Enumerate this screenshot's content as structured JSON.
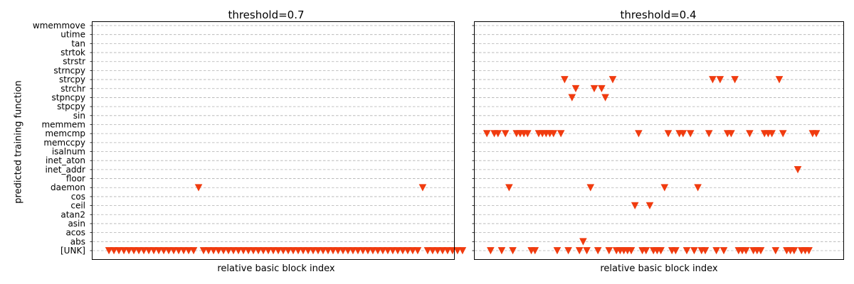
{
  "chart_data": [
    {
      "type": "scatter",
      "title": "threshold=0.7",
      "xlabel": "relative basic block index",
      "ylabel": "predicted training function",
      "marker": "triangle-down",
      "color": "#f03b0f",
      "grid": "y-dashed",
      "xlim": [
        -3.3,
        69.3
      ],
      "categories": [
        "[UNK]",
        "abs",
        "acos",
        "asin",
        "atan2",
        "ceil",
        "cos",
        "daemon",
        "floor",
        "inet_addr",
        "inet_aton",
        "isalnum",
        "memccpy",
        "memcmp",
        "memmem",
        "sin",
        "stpcpy",
        "stpncpy",
        "strchr",
        "strcpy",
        "strncpy",
        "strstr",
        "strtok",
        "tan",
        "utime",
        "wmemmove"
      ],
      "series": [
        {
          "points": [
            [
              0,
              "[UNK]"
            ],
            [
              1,
              "[UNK]"
            ],
            [
              2,
              "[UNK]"
            ],
            [
              3,
              "[UNK]"
            ],
            [
              4,
              "[UNK]"
            ],
            [
              5,
              "[UNK]"
            ],
            [
              6,
              "[UNK]"
            ],
            [
              7,
              "[UNK]"
            ],
            [
              8,
              "[UNK]"
            ],
            [
              9,
              "[UNK]"
            ],
            [
              10,
              "[UNK]"
            ],
            [
              11,
              "[UNK]"
            ],
            [
              12,
              "[UNK]"
            ],
            [
              13,
              "[UNK]"
            ],
            [
              14,
              "[UNK]"
            ],
            [
              15,
              "[UNK]"
            ],
            [
              16,
              "[UNK]"
            ],
            [
              17,
              "[UNK]"
            ],
            [
              18,
              "daemon"
            ],
            [
              19,
              "[UNK]"
            ],
            [
              20,
              "[UNK]"
            ],
            [
              21,
              "[UNK]"
            ],
            [
              22,
              "[UNK]"
            ],
            [
              23,
              "[UNK]"
            ],
            [
              24,
              "[UNK]"
            ],
            [
              25,
              "[UNK]"
            ],
            [
              26,
              "[UNK]"
            ],
            [
              27,
              "[UNK]"
            ],
            [
              28,
              "[UNK]"
            ],
            [
              29,
              "[UNK]"
            ],
            [
              30,
              "[UNK]"
            ],
            [
              31,
              "[UNK]"
            ],
            [
              32,
              "[UNK]"
            ],
            [
              33,
              "[UNK]"
            ],
            [
              34,
              "[UNK]"
            ],
            [
              35,
              "[UNK]"
            ],
            [
              36,
              "[UNK]"
            ],
            [
              37,
              "[UNK]"
            ],
            [
              38,
              "[UNK]"
            ],
            [
              39,
              "[UNK]"
            ],
            [
              40,
              "[UNK]"
            ],
            [
              41,
              "[UNK]"
            ],
            [
              42,
              "[UNK]"
            ],
            [
              43,
              "[UNK]"
            ],
            [
              44,
              "[UNK]"
            ],
            [
              45,
              "[UNK]"
            ],
            [
              46,
              "[UNK]"
            ],
            [
              47,
              "[UNK]"
            ],
            [
              48,
              "[UNK]"
            ],
            [
              49,
              "[UNK]"
            ],
            [
              50,
              "[UNK]"
            ],
            [
              51,
              "[UNK]"
            ],
            [
              52,
              "[UNK]"
            ],
            [
              53,
              "[UNK]"
            ],
            [
              54,
              "[UNK]"
            ],
            [
              55,
              "[UNK]"
            ],
            [
              56,
              "[UNK]"
            ],
            [
              57,
              "[UNK]"
            ],
            [
              58,
              "[UNK]"
            ],
            [
              59,
              "[UNK]"
            ],
            [
              60,
              "[UNK]"
            ],
            [
              61,
              "[UNK]"
            ],
            [
              62,
              "[UNK]"
            ],
            [
              63,
              "daemon"
            ],
            [
              64,
              "[UNK]"
            ],
            [
              65,
              "[UNK]"
            ],
            [
              66,
              "[UNK]"
            ],
            [
              67,
              "[UNK]"
            ],
            [
              68,
              "[UNK]"
            ],
            [
              69,
              "[UNK]"
            ],
            [
              70,
              "[UNK]"
            ],
            [
              71,
              "[UNK]"
            ]
          ]
        }
      ]
    },
    {
      "type": "scatter",
      "title": "threshold=0.4",
      "xlabel": "relative basic block index",
      "ylabel": "",
      "marker": "triangle-down",
      "color": "#f03b0f",
      "grid": "y-dashed",
      "xlim": [
        -3.3,
        96.3
      ],
      "categories": [
        "[UNK]",
        "abs",
        "acos",
        "asin",
        "atan2",
        "ceil",
        "cos",
        "daemon",
        "floor",
        "inet_addr",
        "inet_aton",
        "isalnum",
        "memccpy",
        "memcmp",
        "memmem",
        "sin",
        "stpcpy",
        "stpncpy",
        "strchr",
        "strcpy",
        "strncpy",
        "strstr",
        "strtok",
        "tan",
        "utime",
        "wmemmove"
      ],
      "series": [
        {
          "points": [
            [
              0,
              "memcmp"
            ],
            [
              1,
              "[UNK]"
            ],
            [
              2,
              "memcmp"
            ],
            [
              3,
              "memcmp"
            ],
            [
              4,
              "[UNK]"
            ],
            [
              5,
              "memcmp"
            ],
            [
              6,
              "daemon"
            ],
            [
              7,
              "[UNK]"
            ],
            [
              8,
              "memcmp"
            ],
            [
              9,
              "memcmp"
            ],
            [
              10,
              "memcmp"
            ],
            [
              11,
              "memcmp"
            ],
            [
              12,
              "[UNK]"
            ],
            [
              13,
              "[UNK]"
            ],
            [
              14,
              "memcmp"
            ],
            [
              15,
              "memcmp"
            ],
            [
              16,
              "memcmp"
            ],
            [
              17,
              "memcmp"
            ],
            [
              18,
              "memcmp"
            ],
            [
              19,
              "[UNK]"
            ],
            [
              20,
              "memcmp"
            ],
            [
              21,
              "strcpy"
            ],
            [
              22,
              "[UNK]"
            ],
            [
              23,
              "stpncpy"
            ],
            [
              24,
              "strchr"
            ],
            [
              25,
              "[UNK]"
            ],
            [
              26,
              "abs"
            ],
            [
              27,
              "[UNK]"
            ],
            [
              28,
              "daemon"
            ],
            [
              29,
              "strchr"
            ],
            [
              30,
              "[UNK]"
            ],
            [
              31,
              "strchr"
            ],
            [
              32,
              "stpncpy"
            ],
            [
              33,
              "[UNK]"
            ],
            [
              34,
              "strcpy"
            ],
            [
              35,
              "[UNK]"
            ],
            [
              36,
              "[UNK]"
            ],
            [
              37,
              "[UNK]"
            ],
            [
              38,
              "[UNK]"
            ],
            [
              39,
              "[UNK]"
            ],
            [
              40,
              "ceil"
            ],
            [
              41,
              "memcmp"
            ],
            [
              42,
              "[UNK]"
            ],
            [
              43,
              "[UNK]"
            ],
            [
              44,
              "ceil"
            ],
            [
              45,
              "[UNK]"
            ],
            [
              46,
              "[UNK]"
            ],
            [
              47,
              "[UNK]"
            ],
            [
              48,
              "daemon"
            ],
            [
              49,
              "memcmp"
            ],
            [
              50,
              "[UNK]"
            ],
            [
              51,
              "[UNK]"
            ],
            [
              52,
              "memcmp"
            ],
            [
              53,
              "memcmp"
            ],
            [
              54,
              "[UNK]"
            ],
            [
              55,
              "memcmp"
            ],
            [
              56,
              "[UNK]"
            ],
            [
              57,
              "daemon"
            ],
            [
              58,
              "[UNK]"
            ],
            [
              59,
              "[UNK]"
            ],
            [
              60,
              "memcmp"
            ],
            [
              61,
              "strcpy"
            ],
            [
              62,
              "[UNK]"
            ],
            [
              63,
              "strcpy"
            ],
            [
              64,
              "[UNK]"
            ],
            [
              65,
              "memcmp"
            ],
            [
              66,
              "memcmp"
            ],
            [
              67,
              "strcpy"
            ],
            [
              68,
              "[UNK]"
            ],
            [
              69,
              "[UNK]"
            ],
            [
              70,
              "[UNK]"
            ],
            [
              71,
              "memcmp"
            ],
            [
              72,
              "[UNK]"
            ],
            [
              73,
              "[UNK]"
            ],
            [
              74,
              "[UNK]"
            ],
            [
              75,
              "memcmp"
            ],
            [
              76,
              "memcmp"
            ],
            [
              77,
              "memcmp"
            ],
            [
              78,
              "[UNK]"
            ],
            [
              79,
              "strcpy"
            ],
            [
              80,
              "memcmp"
            ],
            [
              81,
              "[UNK]"
            ],
            [
              82,
              "[UNK]"
            ],
            [
              83,
              "[UNK]"
            ],
            [
              84,
              "inet_addr"
            ],
            [
              85,
              "[UNK]"
            ],
            [
              86,
              "[UNK]"
            ],
            [
              87,
              "[UNK]"
            ],
            [
              88,
              "memcmp"
            ],
            [
              89,
              "memcmp"
            ]
          ]
        }
      ]
    }
  ]
}
